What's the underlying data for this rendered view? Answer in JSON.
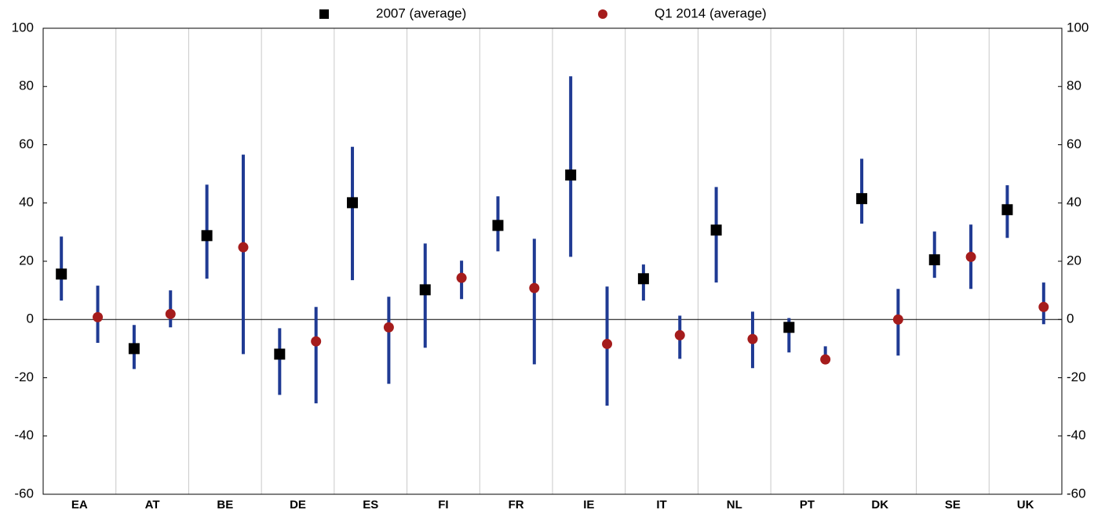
{
  "chart_data": {
    "type": "range-dot",
    "categories": [
      "EA",
      "AT",
      "BE",
      "DE",
      "ES",
      "FI",
      "FR",
      "IE",
      "IT",
      "NL",
      "PT",
      "DK",
      "SE",
      "UK"
    ],
    "range_color": "#1f3a93",
    "series": [
      {
        "name": "2007 (average)",
        "color": "#000000",
        "marker": "square",
        "values": [
          15.6,
          -10,
          28.8,
          -11.9,
          40.1,
          10.2,
          32.3,
          49.6,
          14,
          30.7,
          -2.7,
          41.5,
          20.5,
          37.7
        ],
        "low": [
          6.5,
          -17,
          14,
          -25.9,
          13.5,
          -9.7,
          23.4,
          21.5,
          6.5,
          12.7,
          -11.3,
          32.9,
          14.3,
          28
        ],
        "high": [
          28.5,
          -1.9,
          46.3,
          -3,
          59.3,
          26.1,
          42.3,
          83.5,
          18.9,
          45.5,
          0.5,
          55.2,
          30.2,
          46.1
        ]
      },
      {
        "name": "Q1 2014 (average)",
        "color": "#a51c1c",
        "marker": "circle",
        "values": [
          0.8,
          1.9,
          24.8,
          -7.5,
          -2.7,
          14.3,
          10.8,
          -8.4,
          -5.4,
          -6.7,
          -13.7,
          0,
          21.5,
          4.3
        ],
        "low": [
          -8,
          -2.7,
          -11.9,
          -28.8,
          -22.1,
          7,
          -15.4,
          -29.6,
          -13.5,
          -16.7,
          -15.1,
          -12.4,
          10.5,
          -1.6
        ],
        "high": [
          11.6,
          10,
          56.6,
          4.3,
          7.8,
          20.2,
          27.7,
          11.3,
          1.3,
          2.7,
          -9.2,
          10.5,
          32.6,
          12.7
        ]
      }
    ],
    "ylim": [
      -60,
      100
    ],
    "yticks": [
      -60,
      -40,
      -20,
      0,
      20,
      40,
      60,
      80,
      100
    ],
    "y2lim": [
      -60,
      100
    ],
    "y2ticks": [
      -60,
      -40,
      -20,
      0,
      20,
      40,
      60,
      80,
      100
    ],
    "grid": true,
    "legend": "top"
  }
}
